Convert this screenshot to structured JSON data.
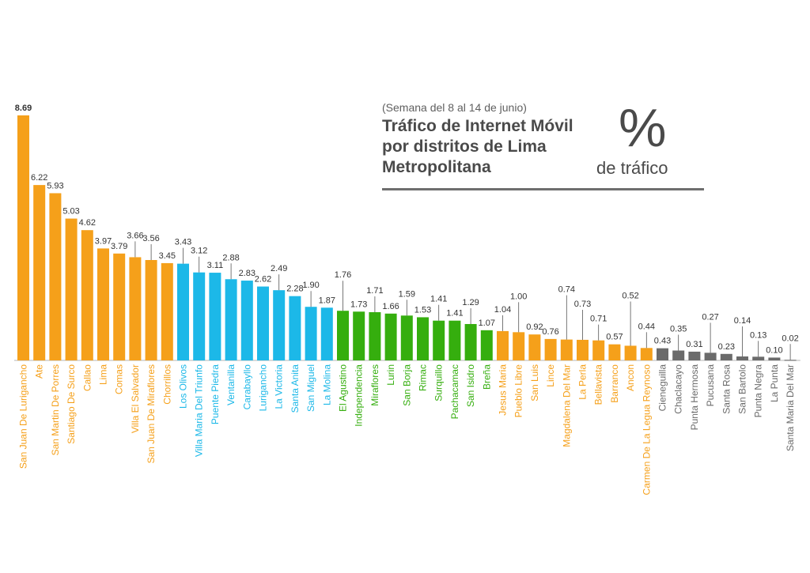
{
  "header": {
    "subtitle": "(Semana del 8 al 14 de junio)",
    "title": "Tráfico de Internet Móvil por distritos de Lima Metropolitana",
    "unit_symbol": "%",
    "unit_label": "de tráfico"
  },
  "colors": {
    "orange": "#f5a01a",
    "blue": "#1cb8e8",
    "green": "#35ae0e",
    "gray": "#6b6b6b",
    "label_text": "#333333",
    "leader_line": "#555555",
    "baseline": "#b5b5b5"
  },
  "chart_data": {
    "type": "bar",
    "title": "Tráfico de Internet Móvil por distritos de Lima Metropolitana",
    "subtitle": "(Semana del 8 al 14 de junio)",
    "ylabel": "% de tráfico",
    "ylim": [
      0,
      8.69
    ],
    "grid": false,
    "legend": "none",
    "categories": [
      "San Juan De Lurigancho",
      "Ate",
      "San Martin De Porres",
      "Santiago De Surco",
      "Callao",
      "Lima",
      "Comas",
      "Villa El Salvador",
      "San Juan De Miraflores",
      "Chorrillos",
      "Los Olivos",
      "Villa Maria Del Triunfo",
      "Puente Piedra",
      "Ventanilla",
      "Carabayllo",
      "Lurigancho",
      "La Victoria",
      "Santa Anita",
      "San Miguel",
      "La Molina",
      "El Agustino",
      "Independencia",
      "Miraflores",
      "Lurin",
      "San Borja",
      "Rimac",
      "Surquillo",
      "Pachacamac",
      "San Isidro",
      "Breña",
      "Jesus Maria",
      "Pueblo Libre",
      "San Luis",
      "Lince",
      "Magdalena Del Mar",
      "La Perla",
      "Bellavista",
      "Barranco",
      "Ancon",
      "Carmen De La Legua Reynoso",
      "Cieneguilla",
      "Chaclacayo",
      "Punta Hermosa",
      "Pucusana",
      "Santa Rosa",
      "San Bartolo",
      "Punta Negra",
      "La Punta",
      "Santa Maria Del Mar"
    ],
    "values": [
      8.69,
      6.22,
      5.93,
      5.03,
      4.62,
      3.97,
      3.79,
      3.66,
      3.56,
      3.45,
      3.43,
      3.12,
      3.11,
      2.88,
      2.83,
      2.62,
      2.49,
      2.28,
      1.9,
      1.87,
      1.76,
      1.73,
      1.71,
      1.66,
      1.59,
      1.53,
      1.41,
      1.41,
      1.29,
      1.07,
      1.04,
      1.0,
      0.92,
      0.76,
      0.74,
      0.73,
      0.71,
      0.57,
      0.52,
      0.44,
      0.43,
      0.35,
      0.31,
      0.27,
      0.23,
      0.14,
      0.13,
      0.1,
      0.02
    ],
    "value_labels": [
      "8.69",
      "6.22",
      "5.93",
      "5.03",
      "4.62",
      "3.97",
      "3.79",
      "3.66",
      "3.56",
      "3.45",
      "3.43",
      "3.12",
      "3.11",
      "2.88",
      "2.83",
      "2.62",
      "2.49",
      "2.28",
      "1.90",
      "1.87",
      "1.76",
      "1.73",
      "1.71",
      "1.66",
      "1.59",
      "1.53",
      "1.41",
      "1.41",
      "1.29",
      "1.07",
      "1.04",
      "1.00",
      "0.92",
      "0.76",
      "0.74",
      "0.73",
      "0.71",
      "0.57",
      "0.52",
      "0.44",
      "0.43",
      "0.35",
      "0.31",
      "0.27",
      "0.23",
      "0.14",
      "0.13",
      "0.10",
      "0.02"
    ],
    "bar_colors": [
      "orange",
      "orange",
      "orange",
      "orange",
      "orange",
      "orange",
      "orange",
      "orange",
      "orange",
      "orange",
      "blue",
      "blue",
      "blue",
      "blue",
      "blue",
      "blue",
      "blue",
      "blue",
      "blue",
      "blue",
      "green",
      "green",
      "green",
      "green",
      "green",
      "green",
      "green",
      "green",
      "green",
      "green",
      "orange",
      "orange",
      "orange",
      "orange",
      "orange",
      "orange",
      "orange",
      "orange",
      "orange",
      "orange",
      "gray",
      "gray",
      "gray",
      "gray",
      "gray",
      "gray",
      "gray",
      "gray",
      "gray"
    ],
    "label_tiers": [
      0,
      0,
      0,
      0,
      0,
      0,
      0,
      1,
      1,
      0,
      1,
      1,
      0,
      1,
      0,
      0,
      1,
      0,
      1,
      0,
      2,
      0,
      1,
      0,
      1,
      0,
      1,
      0,
      1,
      0,
      1,
      2,
      0,
      0,
      3,
      2,
      1,
      0,
      3,
      1,
      0,
      1,
      0,
      2,
      0,
      2,
      1,
      0,
      1
    ]
  }
}
